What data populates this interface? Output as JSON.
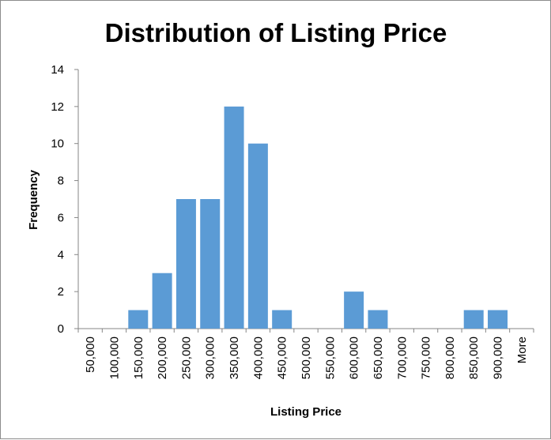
{
  "chart_data": {
    "type": "bar",
    "title": "Distribution of Listing Price",
    "xlabel": "Listing Price",
    "ylabel": "Frequency",
    "categories": [
      "50,000",
      "100,000",
      "150,000",
      "200,000",
      "250,000",
      "300,000",
      "350,000",
      "400,000",
      "450,000",
      "500,000",
      "550,000",
      "600,000",
      "650,000",
      "700,000",
      "750,000",
      "800,000",
      "850,000",
      "900,000",
      "More"
    ],
    "values": [
      0,
      0,
      1,
      3,
      7,
      7,
      12,
      10,
      1,
      0,
      0,
      2,
      1,
      0,
      0,
      0,
      1,
      1,
      0
    ],
    "ylim": [
      0,
      14
    ],
    "yticks": [
      0,
      2,
      4,
      6,
      8,
      10,
      12,
      14
    ],
    "grid": false,
    "legend": "none",
    "bar_color": "#5b9bd5"
  }
}
